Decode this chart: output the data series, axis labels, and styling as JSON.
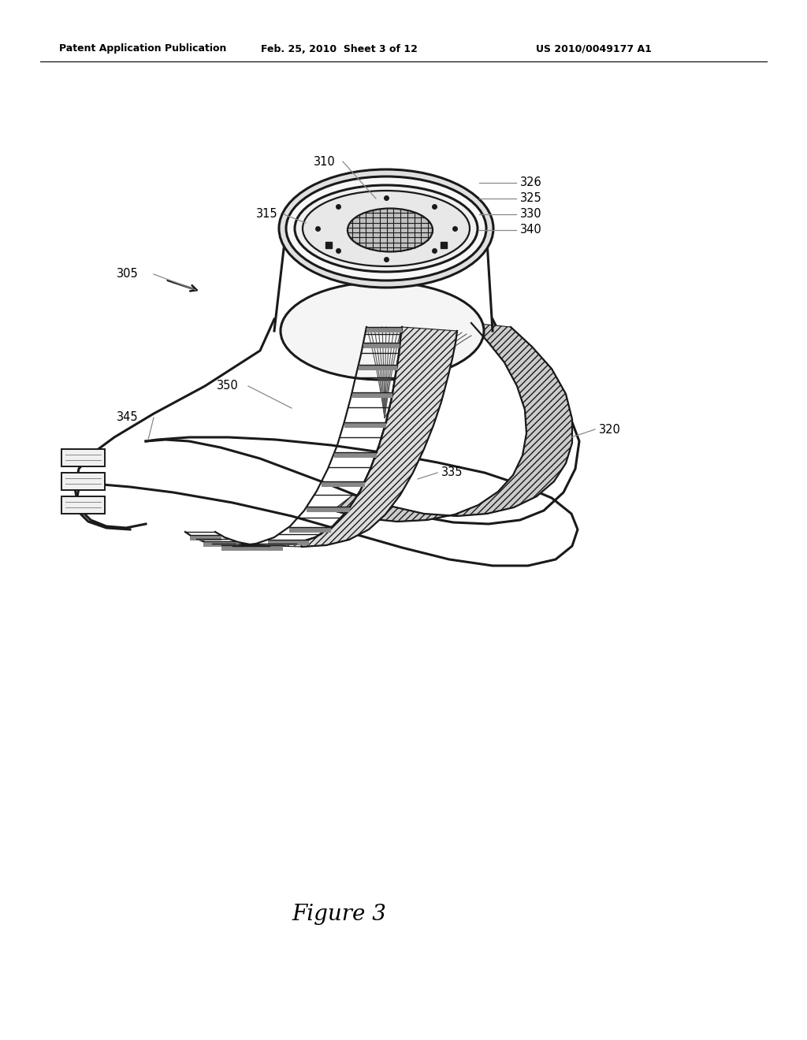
{
  "bg_color": "#ffffff",
  "header_left": "Patent Application Publication",
  "header_center": "Feb. 25, 2010  Sheet 3 of 12",
  "header_right": "US 2010/0049177 A1",
  "figure_caption": "Figure 3",
  "color_main": "#1a1a1a",
  "color_line": "#333333",
  "color_hatch": "#aaaaaa",
  "label_fontsize": 10.5
}
